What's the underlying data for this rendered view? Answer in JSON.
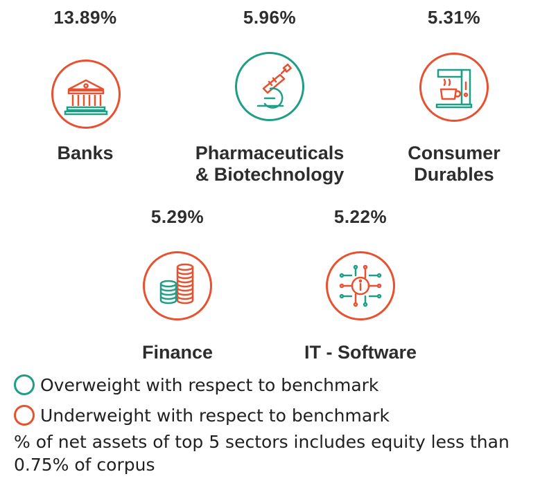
{
  "sectors": [
    {
      "name_line1": "Banks",
      "name_line2": "",
      "percent": "13.89%",
      "weight_status": "underweight",
      "icon": "bank-icon"
    },
    {
      "name_line1": "Pharmaceuticals",
      "name_line2": "& Biotechnology",
      "percent": "5.96%",
      "weight_status": "overweight",
      "icon": "microscope-icon"
    },
    {
      "name_line1": "Consumer",
      "name_line2": "Durables",
      "percent": "5.31%",
      "weight_status": "underweight",
      "icon": "coffee-machine-icon"
    },
    {
      "name_line1": "Finance",
      "name_line2": "",
      "percent": "5.29%",
      "weight_status": "underweight",
      "icon": "coin-stacks-icon"
    },
    {
      "name_line1": "IT - Software",
      "name_line2": "",
      "percent": "5.22%",
      "weight_status": "underweight",
      "icon": "chip-icon"
    }
  ],
  "legend": {
    "overweight_label": "Overweight with respect to benchmark",
    "underweight_label": "Underweight with respect to benchmark"
  },
  "footnote": {
    "line1": "% of net assets of top 5 sectors includes equity less than",
    "line2": "0.75% of corpus"
  },
  "colors": {
    "overweight": "#1e9e86",
    "underweight": "#e8502f",
    "text": "#2d2d2d"
  }
}
